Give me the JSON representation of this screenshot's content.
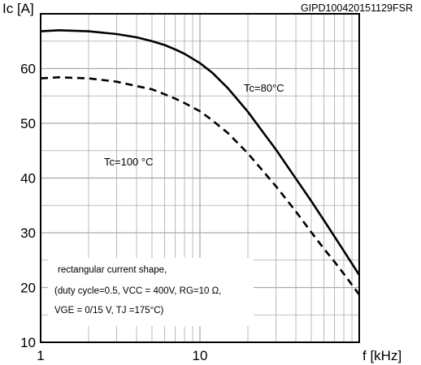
{
  "figure_id": "GIPD100420151129FSR",
  "chart_data": {
    "type": "line",
    "ylabel": "Ic [A]",
    "xlabel": "f [kHz]",
    "x_scale": "log",
    "xlim": [
      1,
      100
    ],
    "ylim": [
      10,
      70
    ],
    "x_ticks": [
      1,
      10
    ],
    "x_tick_labels": [
      "1",
      "10"
    ],
    "y_ticks": [
      10,
      20,
      30,
      40,
      50,
      60
    ],
    "y_tick_labels": [
      "10",
      "20",
      "30",
      "40",
      "50",
      "60"
    ],
    "grid": true,
    "series": [
      {
        "name": "Tc=80°C",
        "style": "solid",
        "x": [
          1,
          1.3,
          2,
          3,
          4,
          5,
          6,
          7,
          8,
          10,
          12,
          15,
          20,
          25,
          30,
          40,
          50,
          60,
          70,
          80,
          100
        ],
        "y": [
          66.8,
          67.0,
          66.8,
          66.3,
          65.7,
          65.0,
          64.3,
          63.5,
          62.7,
          61.0,
          59.2,
          56.4,
          52.1,
          48.3,
          45.2,
          39.9,
          35.8,
          32.3,
          29.3,
          26.7,
          22.3
        ]
      },
      {
        "name": "Tc=100 °C",
        "style": "dashed",
        "x": [
          1,
          1.3,
          2,
          3,
          4,
          5,
          6,
          7,
          8,
          10,
          12,
          15,
          20,
          25,
          30,
          40,
          50,
          60,
          70,
          80,
          100
        ],
        "y": [
          58.2,
          58.4,
          58.2,
          57.6,
          56.8,
          56.2,
          55.3,
          54.5,
          53.7,
          52.2,
          50.5,
          48.2,
          44.5,
          41.2,
          38.5,
          33.9,
          30.1,
          27.1,
          24.7,
          22.5,
          18.7
        ]
      }
    ],
    "annotations": {
      "curve80": "Tc=80°C",
      "curve100": "Tc=100 °C",
      "note_line1": "rectangular current shape,",
      "note_line2": "(duty cycle=0.5, VCC = 400V, RG=10 Ω,",
      "note_line3": "VGE = 0/15 V, TJ =175°C)"
    }
  }
}
